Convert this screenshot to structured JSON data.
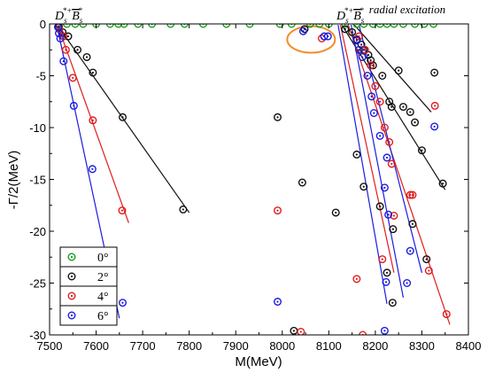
{
  "chart_data": {
    "type": "scatter",
    "title": "",
    "xlabel": "M(MeV)",
    "ylabel": "-Γ/2(MeV)",
    "xlim": [
      7500,
      8400
    ],
    "ylim": [
      -30,
      0
    ],
    "x_ticks": [
      7500,
      7600,
      7700,
      7800,
      7900,
      8000,
      8100,
      8200,
      8300,
      8400
    ],
    "y_ticks": [
      0,
      -5,
      -10,
      -15,
      -20,
      -25,
      -30
    ],
    "grid": false,
    "legend_position": "bottom-left",
    "annotations": [
      {
        "text": "D_s^{*+}̅B_s^{*}",
        "main": "D",
        "sub": "s",
        "sup": "*+",
        "main2": "B",
        "sub2": "s",
        "sup2": "*"
      },
      {
        "text": "D_s^{*+}̅B_s^{*} radial excitation",
        "main": "D",
        "sub": "s",
        "sup": "*+",
        "main2": "B",
        "sub2": "s",
        "sup2": "*",
        "suffix": "radial excitation"
      }
    ],
    "highlight": {
      "shape": "ellipse",
      "color": "#f28c28",
      "center": [
        8062,
        -1.5
      ],
      "note": "circled pole near 8060 MeV"
    },
    "series": [
      {
        "name": "0°",
        "color": "#1a9b1a",
        "points": [
          [
            7520,
            0
          ],
          [
            7537,
            0
          ],
          [
            7555,
            0
          ],
          [
            7572,
            0
          ],
          [
            7600,
            0
          ],
          [
            7630,
            0
          ],
          [
            7648,
            0
          ],
          [
            7660,
            0
          ],
          [
            7690,
            0
          ],
          [
            7720,
            0
          ],
          [
            7760,
            0
          ],
          [
            7790,
            0
          ],
          [
            7830,
            0
          ],
          [
            7880,
            0
          ],
          [
            7930,
            0
          ],
          [
            7995,
            0
          ],
          [
            8020,
            0
          ],
          [
            8060,
            0
          ],
          [
            8080,
            0
          ],
          [
            8100,
            0
          ],
          [
            8135,
            0
          ],
          [
            8160,
            0
          ],
          [
            8175,
            0
          ],
          [
            8195,
            0
          ],
          [
            8210,
            0
          ],
          [
            8225,
            0
          ],
          [
            8240,
            0
          ],
          [
            8260,
            0
          ],
          [
            8285,
            0
          ],
          [
            8305,
            0
          ],
          [
            8325,
            0
          ]
        ],
        "lines": []
      },
      {
        "name": "2°",
        "color": "#111111",
        "points": [
          [
            7520,
            -0.3
          ],
          [
            7528,
            -0.8
          ],
          [
            7540,
            -1.2
          ],
          [
            7560,
            -2.5
          ],
          [
            7580,
            -3.2
          ],
          [
            7593,
            -4.7
          ],
          [
            7657,
            -9.0
          ],
          [
            7787,
            -17.9
          ],
          [
            7990,
            -9.0
          ],
          [
            8043,
            -15.3
          ],
          [
            8025,
            -29.6
          ],
          [
            8048,
            -0.5
          ],
          [
            8115,
            -18.2
          ],
          [
            8135,
            -0.5
          ],
          [
            8150,
            -0.8
          ],
          [
            8160,
            -1.5
          ],
          [
            8170,
            -2.0
          ],
          [
            8175,
            -2.5
          ],
          [
            8185,
            -3.0
          ],
          [
            8190,
            -3.5
          ],
          [
            8195,
            -4.0
          ],
          [
            8215,
            -5.0
          ],
          [
            8230,
            -7.5
          ],
          [
            8235,
            -8.0
          ],
          [
            8250,
            -4.5
          ],
          [
            8260,
            -8.0
          ],
          [
            8275,
            -8.5
          ],
          [
            8285,
            -9.5
          ],
          [
            8300,
            -12.2
          ],
          [
            8310,
            -22.7
          ],
          [
            8327,
            -4.7
          ],
          [
            8345,
            -15.4
          ],
          [
            8280,
            -19.3
          ],
          [
            8238,
            -19.8
          ],
          [
            8237,
            -26.9
          ],
          [
            8210,
            -17.6
          ],
          [
            8175,
            -15.7
          ],
          [
            8160,
            -12.6
          ],
          [
            8225,
            -24.0
          ]
        ],
        "lines": [
          [
            [
              7518,
              -0.2
            ],
            [
              7800,
              -18.2
            ]
          ],
          [
            [
              8128,
              -0.1
            ],
            [
              8350,
              -16.0
            ]
          ],
          [
            [
              8155,
              -0.1
            ],
            [
              8320,
              -8.5
            ]
          ]
        ]
      },
      {
        "name": "4°",
        "color": "#e01c1c",
        "points": [
          [
            7521,
            -0.5
          ],
          [
            7530,
            -1.2
          ],
          [
            7535,
            -2.5
          ],
          [
            7550,
            -5.2
          ],
          [
            7593,
            -9.3
          ],
          [
            7656,
            -18.0
          ],
          [
            7990,
            -18.0
          ],
          [
            8040,
            -29.7
          ],
          [
            8085,
            -1.4
          ],
          [
            8160,
            -24.6
          ],
          [
            8165,
            -1.2
          ],
          [
            8178,
            -2.5
          ],
          [
            8190,
            -4.0
          ],
          [
            8200,
            -6.0
          ],
          [
            8210,
            -7.5
          ],
          [
            8220,
            -10.0
          ],
          [
            8230,
            -11.4
          ],
          [
            8235,
            -13.5
          ],
          [
            8240,
            -18.5
          ],
          [
            8215,
            -22.7
          ],
          [
            8275,
            -16.5
          ],
          [
            8280,
            -16.5
          ],
          [
            8315,
            -23.8
          ],
          [
            8328,
            -7.9
          ],
          [
            8353,
            -28.0
          ],
          [
            8173,
            -30.0
          ]
        ],
        "lines": [
          [
            [
              7518,
              -0.2
            ],
            [
              7670,
              -19.2
            ]
          ],
          [
            [
              8142,
              -0.1
            ],
            [
              8360,
              -29.0
            ]
          ],
          [
            [
              8125,
              -0.1
            ],
            [
              8240,
              -24.0
            ]
          ]
        ]
      },
      {
        "name": "6°",
        "color": "#1c1ce0",
        "points": [
          [
            7518,
            -0.3
          ],
          [
            7520,
            -0.9
          ],
          [
            7523,
            -1.4
          ],
          [
            7530,
            -3.6
          ],
          [
            7552,
            -7.9
          ],
          [
            7592,
            -14.0
          ],
          [
            7657,
            -26.9
          ],
          [
            7990,
            -26.8
          ],
          [
            8045,
            -0.7
          ],
          [
            8090,
            -1.2
          ],
          [
            8098,
            -1.2
          ],
          [
            8160,
            -1.6
          ],
          [
            8165,
            -2.5
          ],
          [
            8172,
            -3.2
          ],
          [
            8183,
            -5.0
          ],
          [
            8192,
            -7.0
          ],
          [
            8197,
            -8.6
          ],
          [
            8210,
            -10.8
          ],
          [
            8225,
            -12.9
          ],
          [
            8228,
            -18.4
          ],
          [
            8223,
            -24.9
          ],
          [
            8220,
            -15.8
          ],
          [
            8268,
            -25.0
          ],
          [
            8275,
            -21.9
          ],
          [
            8327,
            -9.9
          ],
          [
            8220,
            -29.6
          ]
        ],
        "lines": [
          [
            [
              7516,
              -0.2
            ],
            [
              7650,
              -28.4
            ]
          ],
          [
            [
              8120,
              -0.1
            ],
            [
              8225,
              -27.0
            ]
          ],
          [
            [
              8148,
              -0.1
            ],
            [
              8260,
              -26.4
            ]
          ],
          [
            [
              8165,
              -0.1
            ],
            [
              8300,
              -24.0
            ]
          ]
        ]
      }
    ]
  }
}
